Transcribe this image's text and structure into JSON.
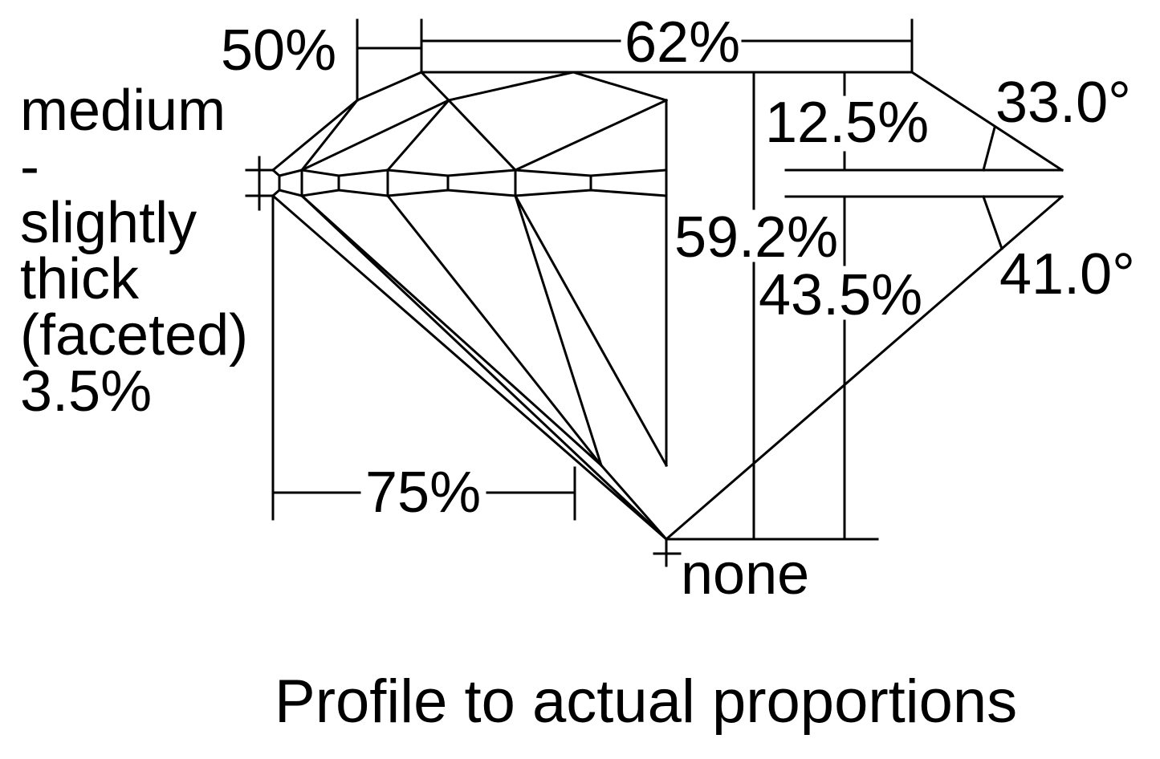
{
  "labels": {
    "lower_half_length": "50%",
    "table": "62%",
    "crown_height": "12.5%",
    "crown_angle": "33.0°",
    "total_depth": "59.2%",
    "pavilion_angle": "41.0°",
    "pavilion_depth": "43.5%",
    "star_length": "75%",
    "culet": "none",
    "girdle_lines": [
      "medium",
      "-",
      "slightly",
      "thick",
      "(faceted)",
      "3.5%"
    ]
  },
  "caption": "Profile to actual proportions",
  "colors": {
    "line": "#000000",
    "background": "#ffffff"
  }
}
